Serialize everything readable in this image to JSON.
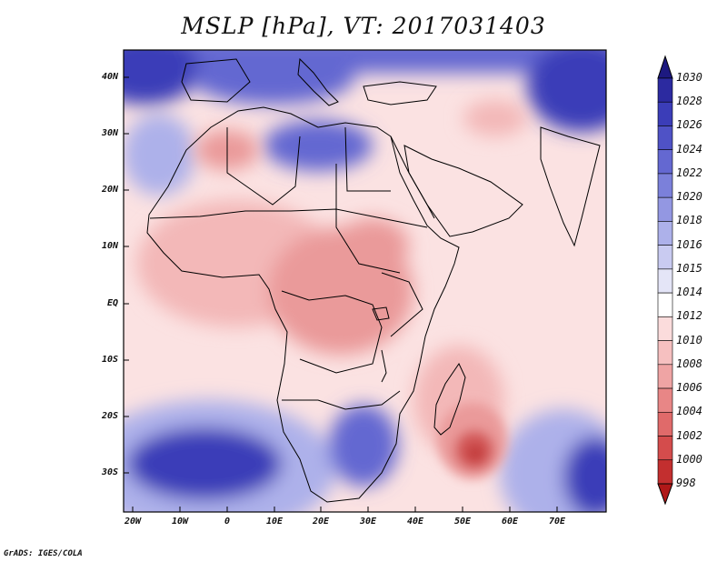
{
  "title": "MSLP [hPa], VT: 2017031403",
  "footer": "GrADS: IGES/COLA",
  "axes": {
    "y_labels": [
      "40N",
      "30N",
      "20N",
      "10N",
      "EQ",
      "10S",
      "20S",
      "30S"
    ],
    "x_labels": [
      "20W",
      "10W",
      "0",
      "10E",
      "20E",
      "30E",
      "40E",
      "50E",
      "60E",
      "70E"
    ]
  },
  "colorbar": {
    "levels": [
      "1030",
      "1028",
      "1026",
      "1024",
      "1022",
      "1020",
      "1018",
      "1016",
      "1015",
      "1014",
      "1012",
      "1010",
      "1008",
      "1006",
      "1004",
      "1002",
      "1000",
      "998"
    ],
    "colors": [
      "#1d1980",
      "#2c2aa0",
      "#3b3db8",
      "#4f52c6",
      "#6468d1",
      "#7b80da",
      "#9397e2",
      "#adb1ea",
      "#c9cbf1",
      "#e4e5f7",
      "#ffffff",
      "#fbdcdc",
      "#f6c0c0",
      "#efa4a4",
      "#e88686",
      "#e06a6a",
      "#d44c4c",
      "#c32f2f",
      "#b01818"
    ]
  },
  "field_colors": {
    "high_dark": "#3b3db8",
    "high_mid": "#6468d1",
    "high_light": "#adb1ea",
    "neutral": "#fbe2e2",
    "low_light": "#f3b8b8",
    "low_mid": "#ea9a9a",
    "low_dark": "#d45a5a",
    "low_core": "#c23a3a",
    "border": "#000000"
  }
}
